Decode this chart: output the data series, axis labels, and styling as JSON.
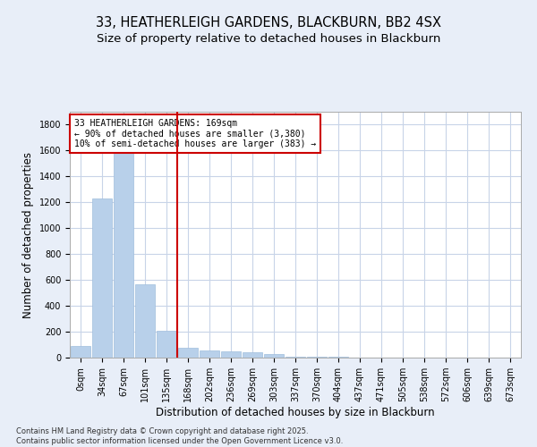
{
  "title_line1": "33, HEATHERLEIGH GARDENS, BLACKBURN, BB2 4SX",
  "title_line2": "Size of property relative to detached houses in Blackburn",
  "xlabel": "Distribution of detached houses by size in Blackburn",
  "ylabel": "Number of detached properties",
  "categories": [
    "0sqm",
    "34sqm",
    "67sqm",
    "101sqm",
    "135sqm",
    "168sqm",
    "202sqm",
    "236sqm",
    "269sqm",
    "303sqm",
    "337sqm",
    "370sqm",
    "404sqm",
    "437sqm",
    "471sqm",
    "505sqm",
    "538sqm",
    "572sqm",
    "606sqm",
    "639sqm",
    "673sqm"
  ],
  "values": [
    90,
    1230,
    1620,
    570,
    210,
    75,
    55,
    50,
    40,
    25,
    10,
    5,
    4,
    2,
    1,
    0,
    0,
    0,
    0,
    0,
    0
  ],
  "bar_color": "#b8d0ea",
  "bar_edge_color": "#a0bedd",
  "vline_color": "#cc0000",
  "annotation_text": "33 HEATHERLEIGH GARDENS: 169sqm\n← 90% of detached houses are smaller (3,380)\n10% of semi-detached houses are larger (383) →",
  "annotation_box_color": "#ffffff",
  "annotation_box_edge": "#cc0000",
  "ylim": [
    0,
    1900
  ],
  "yticks": [
    0,
    200,
    400,
    600,
    800,
    1000,
    1200,
    1400,
    1600,
    1800
  ],
  "footer": "Contains HM Land Registry data © Crown copyright and database right 2025.\nContains public sector information licensed under the Open Government Licence v3.0.",
  "bg_color": "#e8eef8",
  "plot_bg_color": "#ffffff",
  "grid_color": "#c8d4e8",
  "title_fontsize": 10.5,
  "subtitle_fontsize": 9.5,
  "tick_fontsize": 7,
  "label_fontsize": 8.5,
  "annotation_fontsize": 7,
  "footer_fontsize": 6,
  "vline_pos": 4.5
}
